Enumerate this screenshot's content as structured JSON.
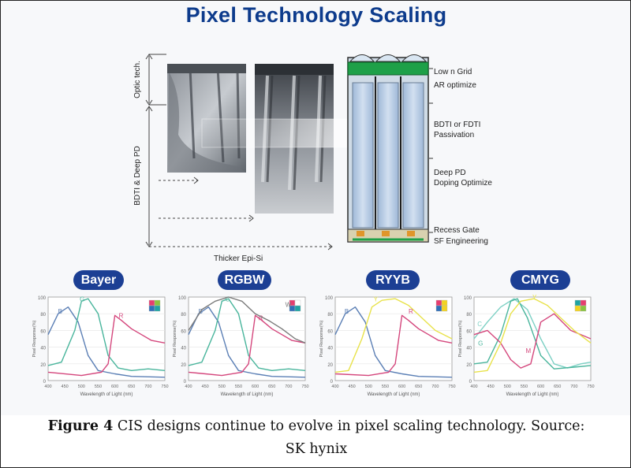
{
  "title": "Pixel Technology Scaling",
  "diagram": {
    "left_labels": [
      "Optic tech.",
      "BDTI & Deep PD"
    ],
    "bottom_label": "Thicker Epi-Si",
    "annotations": [
      {
        "line1": "Low n Grid",
        "line2": "AR optimize"
      },
      {
        "line1": "BDTI or FDTI",
        "line2": "Passivation"
      },
      {
        "line1": "Deep PD",
        "line2": "Doping Optimize"
      },
      {
        "line1": "Recess Gate",
        "line2": "SF Engineering"
      }
    ]
  },
  "charts": [
    {
      "id": "bayer",
      "band": "Bayer",
      "ylabel": "Pixel Response(%)",
      "xlabel": "Wavelength of Light (nm)",
      "yticks": [
        "100",
        "80",
        "60",
        "40",
        "20",
        "0"
      ],
      "xticks": [
        "400",
        "450",
        "500",
        "550",
        "600",
        "650",
        "700",
        "750"
      ],
      "legend": [
        "#e63d6f",
        "#8ac33f",
        "#2f6fb7",
        "#1fa3a3"
      ],
      "series": [
        {
          "name": "B",
          "color": "#5b7fb5",
          "label_x": 430,
          "label_y": 80
        },
        {
          "name": "G",
          "color": "#49b59c",
          "label_x": 495,
          "label_y": 95
        },
        {
          "name": "R",
          "color": "#d4467c",
          "label_x": 612,
          "label_y": 75
        }
      ]
    },
    {
      "id": "rgbw",
      "band": "RGBW",
      "ylabel": "Pixel Response(%)",
      "xlabel": "Wavelength of Light (nm)",
      "yticks": [
        "100",
        "80",
        "60",
        "40",
        "20",
        "0"
      ],
      "xticks": [
        "400",
        "450",
        "500",
        "550",
        "600",
        "650",
        "700",
        "750"
      ],
      "legend": [
        "#e63d6f",
        "#ffffff",
        "#2f6fb7",
        "#1fa3a3"
      ],
      "series": [
        {
          "name": "B",
          "color": "#5b7fb5",
          "label_x": 430,
          "label_y": 80
        },
        {
          "name": "G",
          "color": "#49b59c",
          "label_x": 510,
          "label_y": 95
        },
        {
          "name": "R",
          "color": "#d4467c",
          "label_x": 610,
          "label_y": 72
        },
        {
          "name": "W",
          "color": "#7a7a7a",
          "label_x": 690,
          "label_y": 88
        }
      ]
    },
    {
      "id": "ryyb",
      "band": "RYYB",
      "ylabel": "Pixel Response(%)",
      "xlabel": "Wavelength of Light (nm)",
      "yticks": [
        "100",
        "80",
        "60",
        "40",
        "20",
        "0"
      ],
      "xticks": [
        "400",
        "450",
        "500",
        "550",
        "600",
        "650",
        "700",
        "750"
      ],
      "legend": [
        "#e63d6f",
        "#f2d321",
        "#2f6fb7",
        "#f2d321"
      ],
      "series": [
        {
          "name": "B",
          "color": "#5b7fb5",
          "label_x": 428,
          "label_y": 80
        },
        {
          "name": "Y",
          "color": "#e8e24a",
          "label_x": 515,
          "label_y": 95
        },
        {
          "name": "R",
          "color": "#d4467c",
          "label_x": 620,
          "label_y": 80
        }
      ]
    },
    {
      "id": "cmyg",
      "band": "CMYG",
      "ylabel": "Pixel Response(%)",
      "xlabel": "Wavelength of Light (nm)",
      "yticks": [
        "100",
        "80",
        "60",
        "40",
        "20",
        "0"
      ],
      "xticks": [
        "400",
        "450",
        "500",
        "550",
        "600",
        "650",
        "700",
        "750"
      ],
      "legend": [
        "#1fa3a3",
        "#e63d6f",
        "#f2d321",
        "#8ac33f"
      ],
      "series": [
        {
          "name": "C",
          "color": "#7cd0c4",
          "label_x": 410,
          "label_y": 65
        },
        {
          "name": "G",
          "color": "#49b59c",
          "label_x": 412,
          "label_y": 42
        },
        {
          "name": "M",
          "color": "#d4467c",
          "label_x": 555,
          "label_y": 33
        },
        {
          "name": "Y",
          "color": "#e8e24a",
          "label_x": 575,
          "label_y": 97
        }
      ]
    }
  ],
  "caption": {
    "figure_label": "Figure 4",
    "line1_rest": " CIS designs continue to evolve in pixel scaling technology. Source:",
    "line2": "SK hynix"
  }
}
